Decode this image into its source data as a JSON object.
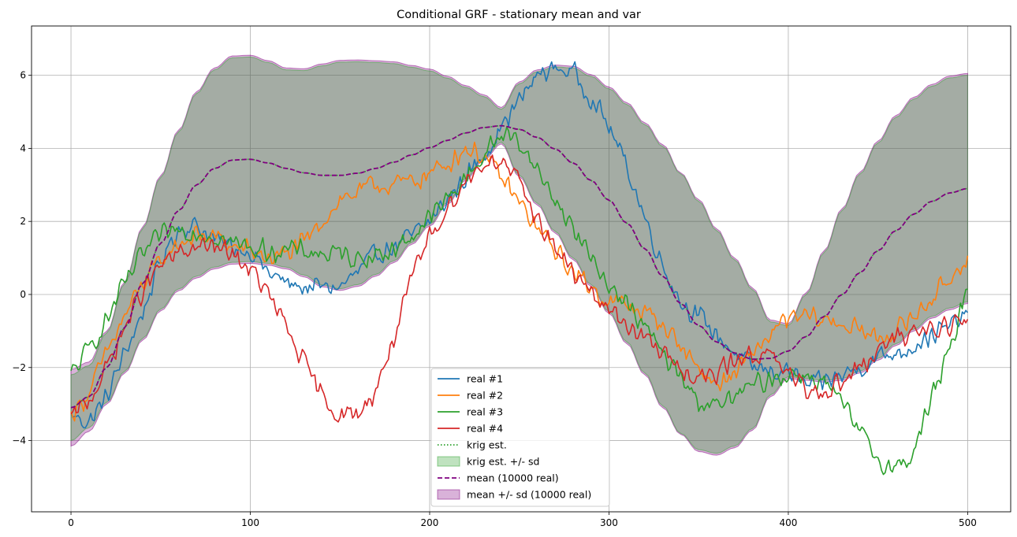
{
  "chart_data": {
    "type": "line",
    "title": "Conditional GRF - stationary mean and var",
    "xlabel": "",
    "ylabel": "",
    "xlim": [
      -22,
      524
    ],
    "ylim": [
      -5.95,
      7.35
    ],
    "xticks": [
      0,
      100,
      200,
      300,
      400,
      500
    ],
    "yticks": [
      -4,
      -2,
      0,
      2,
      4,
      6
    ],
    "grid": true,
    "legend_position": "bottom-center",
    "legend_labels": {
      "real1": "real #1",
      "real2": "real #2",
      "real3": "real #3",
      "real4": "real #4",
      "krig": "krig est.",
      "krig_band": "krig est. +/- sd",
      "mean": "mean (10000 real)",
      "mean_band": "mean +/- sd (10000 real)"
    },
    "colors": {
      "real1": "#1f77b4",
      "real2": "#ff7f0e",
      "real3": "#2ca02c",
      "real4": "#d62728",
      "krig": "#2ca02c",
      "mean": "#800080",
      "mean_band": "#800080"
    },
    "x": [
      0,
      10,
      20,
      30,
      40,
      50,
      60,
      70,
      80,
      90,
      100,
      110,
      120,
      130,
      140,
      150,
      160,
      170,
      180,
      190,
      200,
      210,
      220,
      230,
      240,
      250,
      260,
      270,
      280,
      290,
      300,
      310,
      320,
      330,
      340,
      350,
      360,
      370,
      380,
      390,
      400,
      410,
      420,
      430,
      440,
      450,
      460,
      470,
      480,
      490,
      500
    ],
    "series": [
      {
        "key": "real1",
        "name": "real #1",
        "noise": 0.35,
        "values": [
          -3.3,
          -3.5,
          -2.8,
          -1.6,
          -0.5,
          0.9,
          1.8,
          1.9,
          1.5,
          1.3,
          1.2,
          0.6,
          0.3,
          0.2,
          0.2,
          0.2,
          0.6,
          1.1,
          1.3,
          1.6,
          2.0,
          2.6,
          3.2,
          3.8,
          4.6,
          5.3,
          6.0,
          6.2,
          6.1,
          5.4,
          4.6,
          3.5,
          2.1,
          0.8,
          -0.2,
          -0.6,
          -1.1,
          -1.6,
          -2.0,
          -2.1,
          -2.1,
          -2.5,
          -2.4,
          -2.2,
          -2.0,
          -1.7,
          -1.6,
          -1.4,
          -1.1,
          -0.9,
          -0.5
        ]
      },
      {
        "key": "real2",
        "name": "real #2",
        "noise": 0.35,
        "values": [
          -3.3,
          -2.7,
          -1.6,
          -0.6,
          0.3,
          0.9,
          1.4,
          1.6,
          1.6,
          1.3,
          1.2,
          1.0,
          1.1,
          1.4,
          2.0,
          2.6,
          2.8,
          3.0,
          3.0,
          3.1,
          3.3,
          3.6,
          4.0,
          3.8,
          3.2,
          2.5,
          1.8,
          1.2,
          0.6,
          0.2,
          -0.2,
          -0.3,
          -0.5,
          -0.8,
          -1.4,
          -2.0,
          -2.5,
          -2.2,
          -1.6,
          -1.1,
          -0.7,
          -0.6,
          -0.7,
          -0.8,
          -1.0,
          -1.2,
          -1.0,
          -0.6,
          -0.1,
          0.4,
          1.1
        ]
      },
      {
        "key": "real3",
        "name": "real #3",
        "noise": 0.35,
        "values": [
          -2.2,
          -1.5,
          -0.7,
          0.3,
          1.1,
          1.6,
          1.8,
          1.7,
          1.6,
          1.4,
          1.3,
          1.2,
          1.2,
          1.2,
          1.1,
          1.1,
          1.0,
          1.1,
          1.2,
          1.6,
          2.1,
          2.6,
          3.2,
          3.8,
          4.4,
          4.2,
          3.4,
          2.6,
          1.8,
          1.0,
          0.3,
          -0.3,
          -0.9,
          -1.6,
          -2.3,
          -2.9,
          -3.1,
          -2.8,
          -2.5,
          -2.3,
          -2.2,
          -2.2,
          -2.4,
          -3.0,
          -3.8,
          -4.5,
          -4.8,
          -4.3,
          -2.8,
          -1.6,
          0.3
        ]
      },
      {
        "key": "real4",
        "name": "real #4",
        "noise": 0.35,
        "values": [
          -3.4,
          -2.9,
          -2.0,
          -0.9,
          0.1,
          0.8,
          1.1,
          1.3,
          1.3,
          1.1,
          0.7,
          0.0,
          -0.9,
          -1.9,
          -2.8,
          -3.3,
          -3.3,
          -2.6,
          -1.2,
          0.4,
          1.6,
          2.4,
          3.1,
          3.6,
          3.7,
          3.0,
          2.1,
          1.3,
          0.6,
          0.0,
          -0.4,
          -0.8,
          -1.2,
          -1.6,
          -2.0,
          -2.3,
          -2.2,
          -1.8,
          -1.6,
          -1.7,
          -2.2,
          -2.6,
          -2.6,
          -2.4,
          -2.0,
          -1.6,
          -1.2,
          -1.0,
          -0.9,
          -0.8,
          -0.8
        ]
      }
    ],
    "mean": [
      -3.1,
      -2.8,
      -2.0,
      -0.9,
      0.3,
      1.4,
      2.3,
      3.0,
      3.45,
      3.68,
      3.7,
      3.6,
      3.45,
      3.33,
      3.26,
      3.26,
      3.32,
      3.45,
      3.62,
      3.82,
      4.02,
      4.22,
      4.42,
      4.57,
      4.62,
      4.52,
      4.3,
      3.98,
      3.6,
      3.12,
      2.58,
      1.95,
      1.25,
      0.5,
      -0.25,
      -0.85,
      -1.3,
      -1.6,
      -1.77,
      -1.75,
      -1.55,
      -1.15,
      -0.6,
      0.0,
      0.6,
      1.2,
      1.75,
      2.2,
      2.55,
      2.78,
      2.9
    ],
    "mean_sd": [
      1.05,
      0.95,
      1.0,
      1.25,
      1.55,
      1.85,
      2.2,
      2.55,
      2.75,
      2.85,
      2.85,
      2.8,
      2.75,
      2.85,
      3.05,
      3.15,
      3.1,
      2.95,
      2.75,
      2.45,
      2.15,
      1.75,
      1.3,
      0.9,
      0.5,
      1.3,
      1.85,
      2.3,
      2.65,
      2.9,
      3.1,
      3.3,
      3.45,
      3.6,
      3.58,
      3.45,
      3.1,
      2.6,
      1.95,
      1.05,
      0.75,
      1.2,
      1.8,
      2.35,
      2.75,
      3.0,
      3.15,
      3.2,
      3.2,
      3.2,
      3.15
    ],
    "krig_sd": [
      0.9,
      0.85,
      0.95,
      1.2,
      1.5,
      1.8,
      2.15,
      2.5,
      2.7,
      2.8,
      2.8,
      2.75,
      2.7,
      2.8,
      3.0,
      3.1,
      3.05,
      2.9,
      2.7,
      2.4,
      2.1,
      1.7,
      1.25,
      0.85,
      0.45,
      1.25,
      1.8,
      2.25,
      2.6,
      2.85,
      3.05,
      3.25,
      3.4,
      3.55,
      3.55,
      3.4,
      3.05,
      2.55,
      1.9,
      1.0,
      0.7,
      1.15,
      1.75,
      2.3,
      2.7,
      2.95,
      3.1,
      3.15,
      3.15,
      3.15,
      3.1
    ]
  }
}
